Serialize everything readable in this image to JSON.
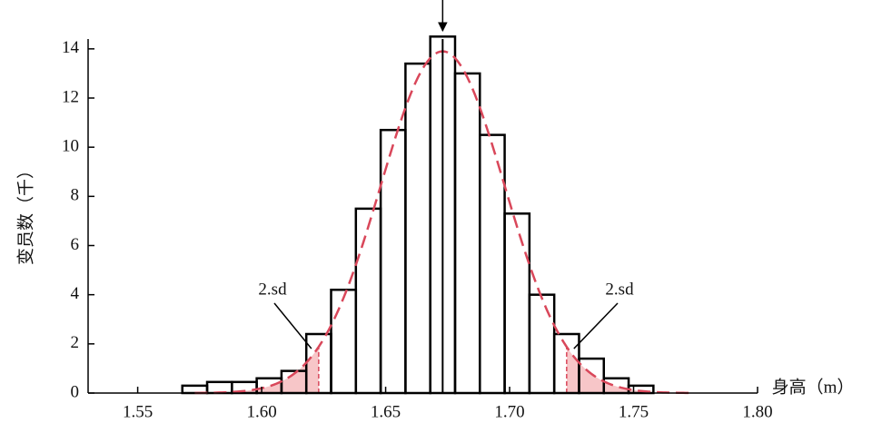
{
  "chart_data": {
    "type": "histogram",
    "x_label": "身高（m）",
    "y_label": "变员数（千）",
    "bins": [
      1.568,
      1.578,
      1.588,
      1.598,
      1.608,
      1.618,
      1.628,
      1.638,
      1.648,
      1.658,
      1.668,
      1.678,
      1.688,
      1.698,
      1.708,
      1.718,
      1.728,
      1.738,
      1.748,
      1.758
    ],
    "counts": [
      0.3,
      0.45,
      0.45,
      0.6,
      0.9,
      2.4,
      4.2,
      7.5,
      10.7,
      13.4,
      14.5,
      13.0,
      10.5,
      7.3,
      4.0,
      2.4,
      1.4,
      0.6,
      0.3
    ],
    "color": "#000000",
    "curve": {
      "mean": 1.673,
      "sd": 0.025,
      "peak": 13.9,
      "color": "#d9475a",
      "shade_color": "#f7c6c8"
    },
    "annotations": [
      "2.sd",
      "2.sd"
    ],
    "xlim": [
      1.53,
      1.8
    ],
    "ylim": [
      0,
      14.4
    ],
    "xticks": [
      1.55,
      1.6,
      1.65,
      1.7,
      1.75,
      1.8
    ],
    "yticks": [
      0,
      2,
      4,
      6,
      8,
      10,
      12,
      14
    ]
  }
}
